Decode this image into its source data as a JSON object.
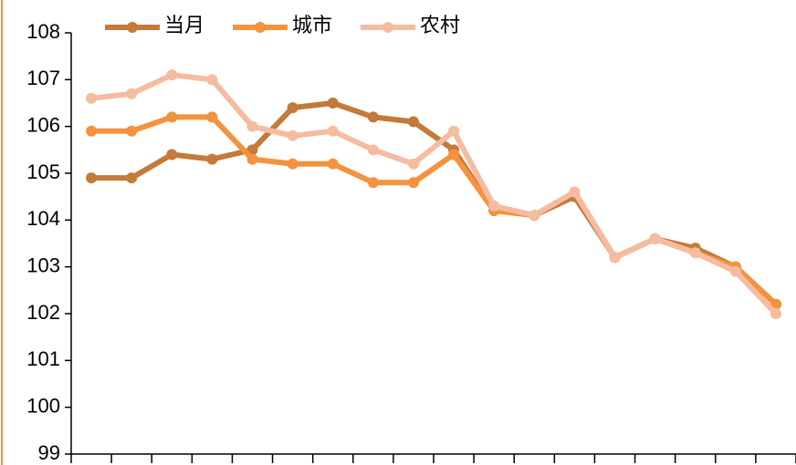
{
  "chart_data": {
    "type": "line",
    "categories": [
      null,
      null,
      null,
      null,
      null,
      null,
      null,
      null,
      null,
      null,
      null,
      null,
      null,
      null,
      null,
      null,
      null,
      null
    ],
    "series": [
      {
        "name": "当月",
        "color": "#c47a3a",
        "values": [
          104.9,
          104.9,
          105.4,
          105.3,
          105.5,
          106.4,
          106.5,
          106.2,
          106.1,
          105.5,
          104.2,
          104.1,
          104.5,
          103.2,
          103.6,
          103.4,
          103.0,
          102.2
        ]
      },
      {
        "name": "城市",
        "color": "#f5923e",
        "values": [
          105.9,
          105.9,
          106.2,
          106.2,
          105.3,
          105.2,
          105.2,
          104.8,
          104.8,
          105.4,
          104.2,
          104.1,
          104.6,
          103.2,
          103.6,
          103.3,
          103.0,
          102.2
        ]
      },
      {
        "name": "农村",
        "color": "#f5bca0",
        "values": [
          106.6,
          106.7,
          107.1,
          107.0,
          106.0,
          105.8,
          105.9,
          105.5,
          105.2,
          105.9,
          104.3,
          104.1,
          104.6,
          103.2,
          103.6,
          103.3,
          102.9,
          102.0
        ]
      }
    ],
    "ylim": [
      99,
      108
    ],
    "yticks": [
      99,
      100,
      101,
      102,
      103,
      104,
      105,
      106,
      107,
      108
    ],
    "legend": "top"
  }
}
